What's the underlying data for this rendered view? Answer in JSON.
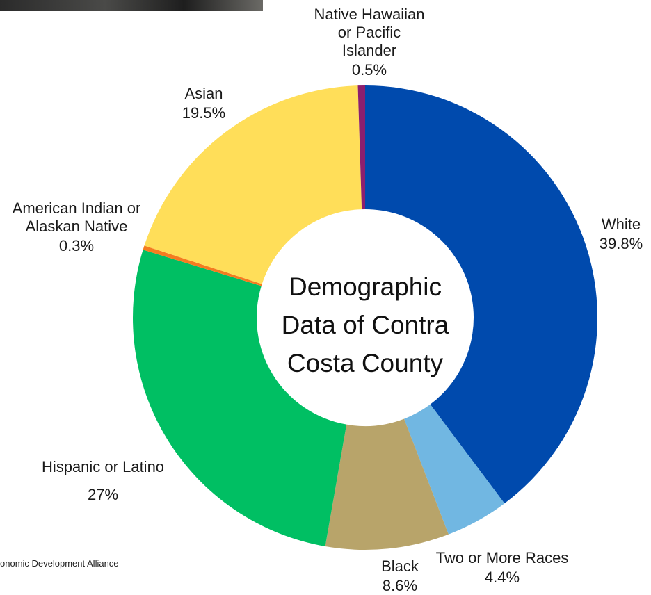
{
  "chart_data": {
    "type": "donut",
    "title": "Demographic Data of Contra Costa County",
    "categories": [
      "White",
      "Two or More Races",
      "Black",
      "Hispanic or Latino",
      "American Indian or Alaskan Native",
      "Asian",
      "Native Hawaiian or Pacific Islander"
    ],
    "values": [
      39.8,
      4.4,
      8.6,
      27,
      0.3,
      19.5,
      0.5
    ],
    "value_labels": [
      "39.8%",
      "4.4%",
      "8.6%",
      "27%",
      "0.3%",
      "19.5%",
      "0.5%"
    ],
    "colors": [
      "#004aad",
      "#71b7e2",
      "#b8a46a",
      "#00bf63",
      "#f47c20",
      "#ffde59",
      "#8c1f6e"
    ],
    "source": "onomic Development Alliance"
  }
}
